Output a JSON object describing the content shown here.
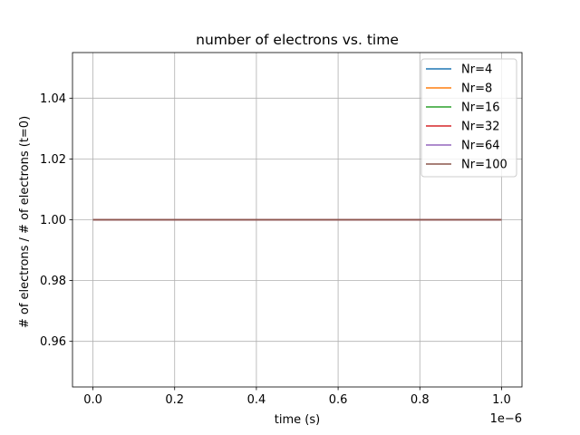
{
  "chart_data": {
    "type": "line",
    "title": "number of electrons vs. time",
    "xlabel": "time (s)",
    "ylabel": "# of electrons / # of electrons (t=0)",
    "x_offset_text": "1e−6",
    "xlim": [
      -0.05,
      1.05
    ],
    "ylim": [
      0.945,
      1.055
    ],
    "x_scale_note": "x values in units of 1e-6 s",
    "xticks": [
      0.0,
      0.2,
      0.4,
      0.6,
      0.8,
      1.0
    ],
    "xtick_labels": [
      "0.0",
      "0.2",
      "0.4",
      "0.6",
      "0.8",
      "1.0"
    ],
    "yticks": [
      0.96,
      0.98,
      1.0,
      1.02,
      1.04
    ],
    "ytick_labels": [
      "0.96",
      "0.98",
      "1.00",
      "1.02",
      "1.04"
    ],
    "grid": true,
    "legend_position": "top-right",
    "series": [
      {
        "name": "Nr=4",
        "color": "#1f77b4",
        "x": [
          0.0,
          1.0
        ],
        "y": [
          1.0,
          1.0
        ]
      },
      {
        "name": "Nr=8",
        "color": "#ff7f0e",
        "x": [
          0.0,
          1.0
        ],
        "y": [
          1.0,
          1.0
        ]
      },
      {
        "name": "Nr=16",
        "color": "#2ca02c",
        "x": [
          0.0,
          1.0
        ],
        "y": [
          1.0,
          1.0
        ]
      },
      {
        "name": "Nr=32",
        "color": "#d62728",
        "x": [
          0.0,
          1.0
        ],
        "y": [
          1.0,
          1.0
        ]
      },
      {
        "name": "Nr=64",
        "color": "#9467bd",
        "x": [
          0.0,
          1.0
        ],
        "y": [
          1.0,
          1.0
        ]
      },
      {
        "name": "Nr=100",
        "color": "#8c564b",
        "x": [
          0.0,
          1.0
        ],
        "y": [
          1.0,
          1.0
        ]
      }
    ]
  }
}
